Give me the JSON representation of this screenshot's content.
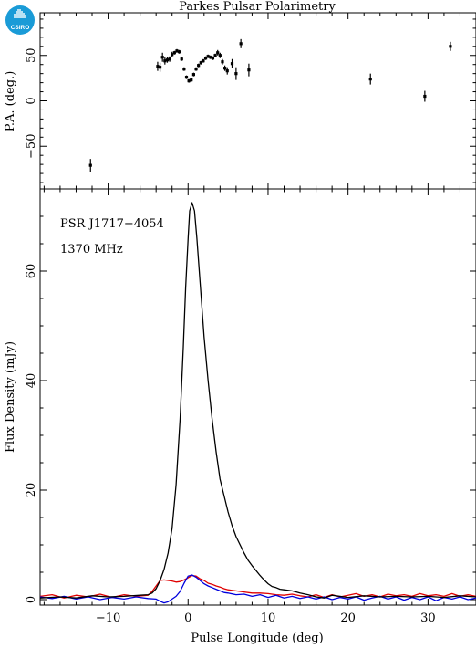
{
  "title": "Parkes Pulsar Polarimetry",
  "logo": {
    "text": "CSIRO",
    "color": "#1a9bd7"
  },
  "colors": {
    "total": "#000000",
    "linear": "#e00000",
    "circular": "#0000dd"
  },
  "annotations": {
    "psr": "PSR J1717−4054",
    "freq": "1370 MHz"
  },
  "chart_data": [
    {
      "type": "scatter",
      "panel": "top",
      "ylabel": "P.A. (deg.)",
      "xlim": [
        -18.5,
        36
      ],
      "ylim": [
        -97,
        97
      ],
      "yticks": [
        -50,
        0,
        50
      ],
      "ytick_labels": [
        "−50",
        "0",
        "50"
      ],
      "points": [
        {
          "x": -12.2,
          "y": -71,
          "err": 7
        },
        {
          "x": -3.8,
          "y": 38,
          "err": 5
        },
        {
          "x": -3.5,
          "y": 37,
          "err": 5
        },
        {
          "x": -3.2,
          "y": 48,
          "err": 5
        },
        {
          "x": -2.9,
          "y": 44,
          "err": 4
        },
        {
          "x": -2.6,
          "y": 45,
          "err": 3
        },
        {
          "x": -2.3,
          "y": 46,
          "err": 3
        },
        {
          "x": -2.0,
          "y": 51,
          "err": 3
        },
        {
          "x": -1.7,
          "y": 53,
          "err": 2
        },
        {
          "x": -1.4,
          "y": 55,
          "err": 2
        },
        {
          "x": -1.1,
          "y": 54,
          "err": 2
        },
        {
          "x": -0.8,
          "y": 46,
          "err": 2
        },
        {
          "x": -0.5,
          "y": 35,
          "err": 2
        },
        {
          "x": -0.2,
          "y": 26,
          "err": 2
        },
        {
          "x": 0.1,
          "y": 22,
          "err": 2
        },
        {
          "x": 0.4,
          "y": 23,
          "err": 2
        },
        {
          "x": 0.7,
          "y": 29,
          "err": 2
        },
        {
          "x": 1.0,
          "y": 35,
          "err": 2
        },
        {
          "x": 1.3,
          "y": 39,
          "err": 2
        },
        {
          "x": 1.6,
          "y": 42,
          "err": 2
        },
        {
          "x": 1.9,
          "y": 44,
          "err": 2
        },
        {
          "x": 2.2,
          "y": 47,
          "err": 2
        },
        {
          "x": 2.5,
          "y": 49,
          "err": 2
        },
        {
          "x": 2.8,
          "y": 48,
          "err": 2
        },
        {
          "x": 3.1,
          "y": 47,
          "err": 2
        },
        {
          "x": 3.4,
          "y": 50,
          "err": 2
        },
        {
          "x": 3.7,
          "y": 53,
          "err": 3
        },
        {
          "x": 4.0,
          "y": 50,
          "err": 3
        },
        {
          "x": 4.3,
          "y": 43,
          "err": 3
        },
        {
          "x": 4.6,
          "y": 36,
          "err": 3
        },
        {
          "x": 4.9,
          "y": 33,
          "err": 4
        },
        {
          "x": 5.5,
          "y": 41,
          "err": 5
        },
        {
          "x": 6.0,
          "y": 30,
          "err": 7
        },
        {
          "x": 6.6,
          "y": 63,
          "err": 5
        },
        {
          "x": 7.6,
          "y": 34,
          "err": 7
        },
        {
          "x": 22.8,
          "y": 24,
          "err": 6
        },
        {
          "x": 29.6,
          "y": 5,
          "err": 6
        },
        {
          "x": 32.8,
          "y": 60,
          "err": 5
        }
      ]
    },
    {
      "type": "line",
      "panel": "bottom",
      "xlabel": "Pulse Longitude (deg)",
      "ylabel": "Flux Density (mJy)",
      "xlim": [
        -18.5,
        36
      ],
      "ylim": [
        -1,
        75
      ],
      "xticks": [
        -10,
        0,
        10,
        20,
        30
      ],
      "xtick_labels": [
        "−10",
        "0",
        "10",
        "20",
        "30"
      ],
      "yticks": [
        0,
        20,
        40,
        60
      ],
      "ytick_labels": [
        "0",
        "20",
        "40",
        "60"
      ],
      "series": [
        {
          "key": "total",
          "color": "#000000",
          "points": [
            [
              -18.5,
              0.3
            ],
            [
              -16,
              0.5
            ],
            [
              -14,
              0.3
            ],
            [
              -12,
              0.7
            ],
            [
              -10,
              0.5
            ],
            [
              -8,
              0.6
            ],
            [
              -6,
              0.8
            ],
            [
              -5,
              0.9
            ],
            [
              -4.5,
              1.2
            ],
            [
              -4,
              2
            ],
            [
              -3.5,
              3.5
            ],
            [
              -3,
              5.5
            ],
            [
              -2.5,
              8.5
            ],
            [
              -2,
              13
            ],
            [
              -1.5,
              21
            ],
            [
              -1,
              33
            ],
            [
              -0.6,
              46
            ],
            [
              -0.3,
              57
            ],
            [
              0,
              66
            ],
            [
              0.2,
              71
            ],
            [
              0.5,
              72.5
            ],
            [
              0.8,
              71
            ],
            [
              1.1,
              66
            ],
            [
              1.5,
              58
            ],
            [
              2,
              48
            ],
            [
              2.5,
              40
            ],
            [
              3,
              33
            ],
            [
              3.5,
              27
            ],
            [
              4,
              22
            ],
            [
              4.5,
              19
            ],
            [
              5,
              16
            ],
            [
              5.5,
              13.5
            ],
            [
              6,
              11.5
            ],
            [
              6.5,
              10
            ],
            [
              7,
              8.5
            ],
            [
              7.5,
              7.2
            ],
            [
              8,
              6.2
            ],
            [
              8.5,
              5.3
            ],
            [
              9,
              4.4
            ],
            [
              9.5,
              3.6
            ],
            [
              10,
              2.9
            ],
            [
              10.5,
              2.4
            ],
            [
              11,
              2.2
            ],
            [
              11.5,
              1.9
            ],
            [
              12,
              1.8
            ],
            [
              12.5,
              1.7
            ],
            [
              13,
              1.6
            ],
            [
              14,
              1.2
            ],
            [
              15,
              0.9
            ],
            [
              16,
              0.5
            ],
            [
              17,
              0.3
            ],
            [
              18,
              0.8
            ],
            [
              20,
              0.4
            ],
            [
              22,
              0.7
            ],
            [
              24,
              0.5
            ],
            [
              26,
              0.6
            ],
            [
              28,
              0.5
            ],
            [
              30,
              0.6
            ],
            [
              32,
              0.4
            ],
            [
              34,
              0.7
            ],
            [
              36,
              0.5
            ]
          ]
        },
        {
          "key": "linear",
          "color": "#e00000",
          "points": [
            [
              -18.5,
              0.6
            ],
            [
              -17,
              0.9
            ],
            [
              -15.5,
              0.3
            ],
            [
              -14,
              0.8
            ],
            [
              -12.5,
              0.5
            ],
            [
              -11,
              1.0
            ],
            [
              -9.5,
              0.4
            ],
            [
              -8,
              0.9
            ],
            [
              -6.5,
              0.6
            ],
            [
              -5,
              0.8
            ],
            [
              -4.5,
              1.5
            ],
            [
              -4,
              2.5
            ],
            [
              -3.5,
              3.5
            ],
            [
              -3,
              3.6
            ],
            [
              -2.5,
              3.5
            ],
            [
              -2,
              3.4
            ],
            [
              -1.5,
              3.2
            ],
            [
              -1,
              3.3
            ],
            [
              -0.5,
              3.6
            ],
            [
              0,
              4.0
            ],
            [
              0.5,
              4.4
            ],
            [
              1,
              4.3
            ],
            [
              1.5,
              3.8
            ],
            [
              2,
              3.5
            ],
            [
              2.5,
              3.0
            ],
            [
              3,
              2.8
            ],
            [
              3.5,
              2.5
            ],
            [
              4,
              2.3
            ],
            [
              4.5,
              2.0
            ],
            [
              5,
              1.8
            ],
            [
              6,
              1.6
            ],
            [
              7,
              1.4
            ],
            [
              8,
              1.2
            ],
            [
              9,
              1.2
            ],
            [
              10,
              1.1
            ],
            [
              11,
              0.9
            ],
            [
              12,
              0.8
            ],
            [
              13,
              1.0
            ],
            [
              14,
              0.7
            ],
            [
              15,
              0.5
            ],
            [
              16,
              0.9
            ],
            [
              17,
              0.4
            ],
            [
              18,
              0.9
            ],
            [
              19,
              0.5
            ],
            [
              20,
              0.8
            ],
            [
              21,
              1.1
            ],
            [
              22,
              0.6
            ],
            [
              23,
              0.9
            ],
            [
              24,
              0.5
            ],
            [
              25,
              1.0
            ],
            [
              26,
              0.7
            ],
            [
              27,
              0.9
            ],
            [
              28,
              0.6
            ],
            [
              29,
              1.1
            ],
            [
              30,
              0.7
            ],
            [
              31,
              0.9
            ],
            [
              32,
              0.6
            ],
            [
              33,
              1.1
            ],
            [
              34,
              0.6
            ],
            [
              35,
              0.9
            ],
            [
              36,
              0.6
            ]
          ]
        },
        {
          "key": "circular",
          "color": "#0000dd",
          "points": [
            [
              -18.5,
              0.5
            ],
            [
              -17,
              0.2
            ],
            [
              -15.5,
              0.6
            ],
            [
              -14,
              0.1
            ],
            [
              -12.5,
              0.5
            ],
            [
              -11,
              0.0
            ],
            [
              -9.5,
              0.4
            ],
            [
              -8,
              0.1
            ],
            [
              -6.5,
              0.5
            ],
            [
              -5,
              0.2
            ],
            [
              -4,
              0.1
            ],
            [
              -3.5,
              -0.3
            ],
            [
              -3,
              -0.6
            ],
            [
              -2.5,
              -0.4
            ],
            [
              -2,
              0.1
            ],
            [
              -1.5,
              0.6
            ],
            [
              -1,
              1.5
            ],
            [
              -0.5,
              3.0
            ],
            [
              0,
              4.3
            ],
            [
              0.5,
              4.5
            ],
            [
              1,
              4.1
            ],
            [
              1.5,
              3.5
            ],
            [
              2,
              2.9
            ],
            [
              2.5,
              2.5
            ],
            [
              3,
              2.2
            ],
            [
              3.5,
              1.9
            ],
            [
              4,
              1.6
            ],
            [
              4.5,
              1.3
            ],
            [
              5,
              1.2
            ],
            [
              6,
              0.9
            ],
            [
              7,
              1.0
            ],
            [
              8,
              0.6
            ],
            [
              9,
              0.9
            ],
            [
              10,
              0.4
            ],
            [
              11,
              0.8
            ],
            [
              12,
              0.3
            ],
            [
              13,
              0.6
            ],
            [
              14,
              0.2
            ],
            [
              15,
              0.5
            ],
            [
              16,
              0.1
            ],
            [
              17,
              0.5
            ],
            [
              18,
              0.0
            ],
            [
              19,
              0.4
            ],
            [
              20,
              0.1
            ],
            [
              21,
              0.5
            ],
            [
              22,
              -0.1
            ],
            [
              23,
              0.3
            ],
            [
              24,
              0.6
            ],
            [
              25,
              0.1
            ],
            [
              26,
              0.5
            ],
            [
              27,
              -0.1
            ],
            [
              28,
              0.4
            ],
            [
              29,
              0.0
            ],
            [
              30,
              0.5
            ],
            [
              31,
              -0.2
            ],
            [
              32,
              0.4
            ],
            [
              33,
              0.1
            ],
            [
              34,
              0.5
            ],
            [
              35,
              0.0
            ],
            [
              36,
              0.3
            ]
          ]
        }
      ]
    }
  ]
}
